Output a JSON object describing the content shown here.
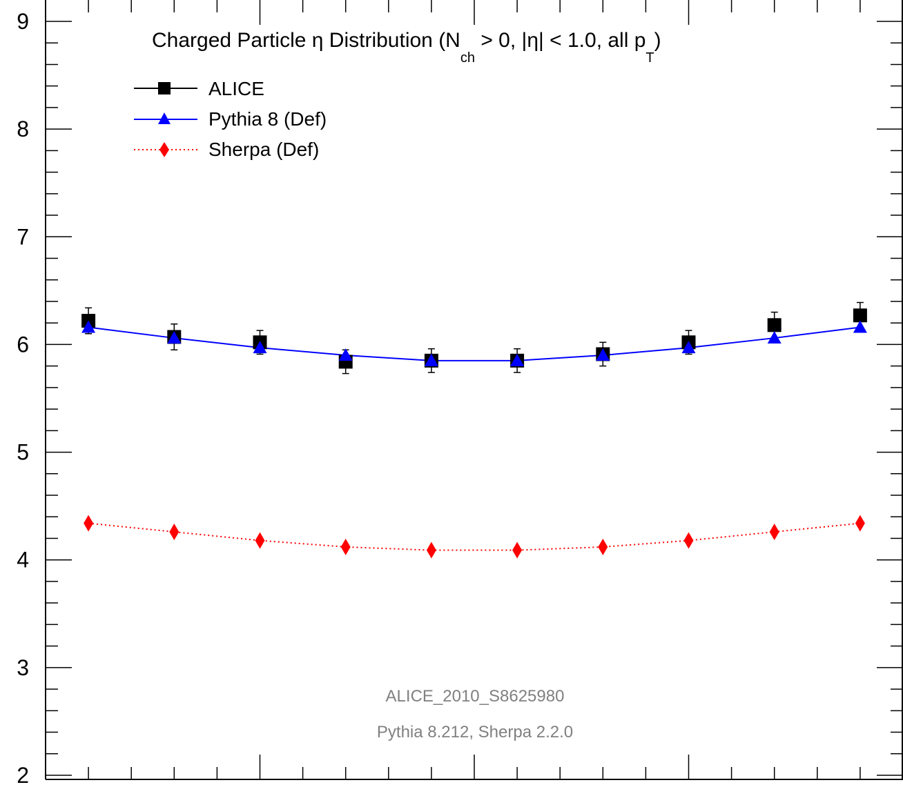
{
  "chart_data": {
    "type": "scatter",
    "title_parts": {
      "a": "Charged Particle η Distribution (N",
      "sub1": "ch",
      "b": " > 0, |η| < 1.0, all p",
      "sub2": "T",
      "c": ")"
    },
    "x": [
      -0.9,
      -0.7,
      -0.5,
      -0.3,
      -0.1,
      0.1,
      0.3,
      0.5,
      0.7,
      0.9
    ],
    "xlim": [
      -1.0,
      1.0
    ],
    "ylim": [
      2,
      9
    ],
    "y_ticks": [
      "2",
      "3",
      "4",
      "5",
      "6",
      "7",
      "8",
      "9"
    ],
    "grid": false,
    "legend_position": "top-left",
    "series": [
      {
        "name": "ALICE",
        "marker": "square",
        "color": "#000000",
        "values": [
          6.22,
          6.07,
          6.02,
          5.84,
          5.85,
          5.85,
          5.91,
          6.02,
          6.18,
          6.27
        ],
        "errors": [
          0.12,
          0.12,
          0.11,
          0.11,
          0.11,
          0.11,
          0.11,
          0.11,
          0.12,
          0.12
        ]
      },
      {
        "name": "Pythia 8 (Def)",
        "marker": "triangle",
        "color": "#0000ff",
        "line": "solid",
        "values": [
          6.16,
          6.06,
          5.97,
          5.9,
          5.85,
          5.85,
          5.9,
          5.97,
          6.06,
          6.16
        ]
      },
      {
        "name": "Sherpa (Def)",
        "marker": "diamond",
        "color": "#ff0000",
        "line": "dotted",
        "values": [
          4.34,
          4.26,
          4.18,
          4.12,
          4.09,
          4.09,
          4.12,
          4.18,
          4.26,
          4.34
        ]
      }
    ],
    "annotations": [
      "ALICE_2010_S8625980",
      "Pythia 8.212, Sherpa 2.2.0"
    ]
  }
}
